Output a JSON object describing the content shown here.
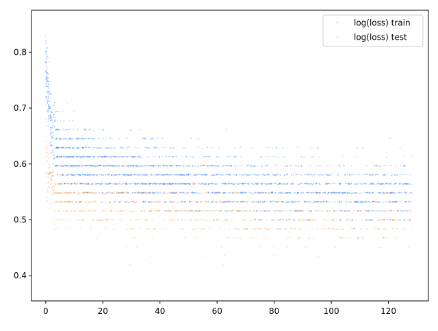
{
  "chart_data": {
    "type": "scatter",
    "title": "",
    "xlabel": "",
    "ylabel": "",
    "xlim": [
      -5,
      134
    ],
    "ylim": [
      0.355,
      0.875
    ],
    "xticks": [
      0,
      20,
      40,
      60,
      80,
      100,
      120
    ],
    "yticks": [
      0.4,
      0.5,
      0.6,
      0.7,
      0.8
    ],
    "grid": false,
    "legend_position": "top-right",
    "series": [
      {
        "name": "log(loss) train",
        "color": "#1f77ff",
        "trend": {
          "x": [
            0,
            1,
            2,
            4,
            8,
            15,
            30,
            60,
            90,
            128
          ],
          "y": [
            0.78,
            0.7,
            0.66,
            0.63,
            0.61,
            0.6,
            0.585,
            0.565,
            0.555,
            0.548
          ]
        },
        "spread": [
          0.42,
          0.65
        ]
      },
      {
        "name": "log(loss) test",
        "color": "#ff7f0e",
        "trend": {
          "x": [
            0,
            1,
            2,
            4,
            8,
            15,
            30,
            60,
            90,
            128
          ],
          "y": [
            0.62,
            0.58,
            0.56,
            0.55,
            0.54,
            0.535,
            0.53,
            0.52,
            0.515,
            0.51
          ]
        },
        "spread": [
          0.4,
          0.62
        ]
      }
    ]
  }
}
